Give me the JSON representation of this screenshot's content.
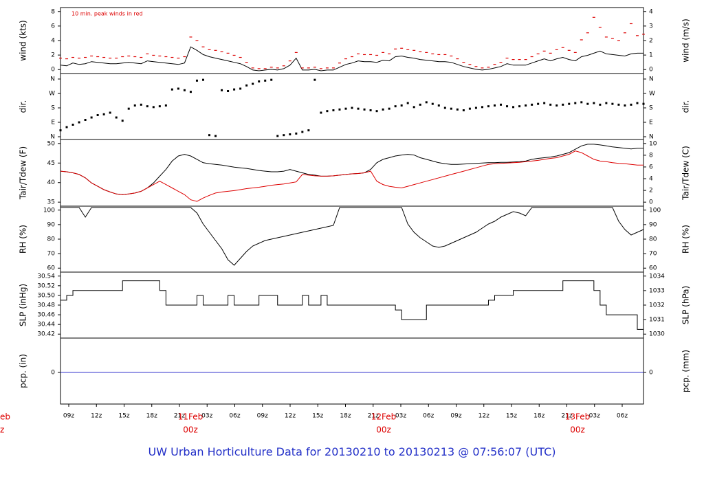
{
  "footer_title": "UW Urban Horticulture Data for 20130210  to  20130213 @ 07:56:07  (UTC)",
  "colors": {
    "black": "#000000",
    "red": "#dd0000",
    "blue": "#3333cc",
    "title": "#2330c8"
  },
  "chart_data": {
    "type": "line",
    "x_axis": {
      "tick_labels": [
        "09z",
        "12z",
        "15z",
        "18z",
        "21z",
        "03z",
        "06z",
        "09z",
        "12z",
        "15z",
        "18z",
        "21z",
        "03z",
        "06z",
        "09z",
        "12z",
        "15z",
        "18z",
        "21z",
        "03z",
        "06z"
      ],
      "day_labels": [
        {
          "day": "11Feb",
          "time": "00z"
        },
        {
          "day": "12Feb",
          "time": "00z"
        },
        {
          "day": "13Feb",
          "time": "00z"
        }
      ],
      "clipped_left_labels": {
        "day": "eb",
        "time": "z"
      }
    },
    "panels": [
      {
        "id": "wind",
        "ylabel_left": "wind (kts)",
        "ylabel_right": "wind (m/s)",
        "annotation": "10 min. peak winds in red",
        "ylim_left": [
          0,
          9
        ],
        "ylim_right": [
          0,
          4.6
        ],
        "ticks_left": [
          "0",
          "2",
          "4",
          "6",
          "8"
        ],
        "ticks_right": [
          "0",
          "1",
          "2",
          "3",
          "4"
        ],
        "series": [
          {
            "name": "wind",
            "color": "black",
            "style": "line",
            "values": [
              1.0,
              0.9,
              1.3,
              1.1,
              1.2,
              1.5,
              1.4,
              1.3,
              1.2,
              1.2,
              1.3,
              1.4,
              1.3,
              1.2,
              1.6,
              1.5,
              1.4,
              1.3,
              1.2,
              1.1,
              1.3,
              3.6,
              3.1,
              2.5,
              2.2,
              2.0,
              1.8,
              1.6,
              1.4,
              1.2,
              0.8,
              0.3,
              0.2,
              0.3,
              0.4,
              0.3,
              0.5,
              1.0,
              2.0,
              0.3,
              0.3,
              0.4,
              0.2,
              0.3,
              0.3,
              0.7,
              1.1,
              1.3,
              1.6,
              1.5,
              1.5,
              1.4,
              1.7,
              1.6,
              2.2,
              2.3,
              2.1,
              2.0,
              1.8,
              1.7,
              1.6,
              1.5,
              1.5,
              1.4,
              1.1,
              0.8,
              0.6,
              0.4,
              0.3,
              0.4,
              0.6,
              0.8,
              1.2,
              1.0,
              1.0,
              1.0,
              1.3,
              1.6,
              1.9,
              1.6,
              1.9,
              2.1,
              1.8,
              1.6,
              2.2,
              2.4,
              2.7,
              3.0,
              2.6,
              2.5,
              2.4,
              2.3,
              2.6,
              2.7,
              2.7
            ]
          },
          {
            "name": "peak",
            "color": "red",
            "style": "dash",
            "values": [
              2.0,
              1.9,
              2.1,
              2.0,
              2.1,
              2.3,
              2.2,
              2.1,
              2.0,
              2.0,
              2.2,
              2.3,
              2.2,
              2.1,
              2.6,
              2.4,
              2.3,
              2.2,
              2.1,
              2.0,
              2.2,
              5.0,
              4.5,
              3.6,
              3.2,
              3.1,
              2.9,
              2.7,
              2.4,
              2.1,
              1.4,
              0.6,
              0.5,
              0.5,
              0.7,
              0.6,
              0.9,
              1.6,
              2.8,
              0.6,
              0.6,
              0.7,
              0.5,
              0.6,
              0.6,
              1.3,
              1.9,
              2.2,
              2.6,
              2.5,
              2.5,
              2.4,
              2.8,
              2.6,
              3.3,
              3.4,
              3.2,
              3.1,
              2.9,
              2.8,
              2.6,
              2.5,
              2.5,
              2.3,
              1.9,
              1.4,
              1.1,
              0.8,
              0.6,
              0.7,
              1.1,
              1.4,
              2.0,
              1.8,
              1.8,
              1.8,
              2.2,
              2.6,
              3.0,
              2.7,
              3.2,
              3.5,
              3.1,
              2.8,
              4.6,
              5.6,
              7.8,
              6.4,
              5.0,
              4.8,
              4.5,
              5.6,
              6.9,
              5.2,
              5.4
            ]
          }
        ]
      },
      {
        "id": "dir",
        "ylabel_left": "dir.",
        "ylabel_right": "dir.",
        "ylim": [
          0,
          360
        ],
        "ticks_left": [
          "N",
          "E",
          "S",
          "W",
          "N"
        ],
        "ticks_right": [
          "N",
          "E",
          "S",
          "W",
          "N"
        ],
        "series": [
          {
            "name": "direction",
            "color": "black",
            "style": "dots",
            "values": [
              40,
              60,
              75,
              90,
              105,
              120,
              135,
              140,
              150,
              120,
              100,
              175,
              195,
              200,
              190,
              185,
              190,
              195,
              295,
              300,
              290,
              280,
              350,
              355,
              10,
              5,
              290,
              285,
              295,
              300,
              320,
              330,
              345,
              350,
              355,
              5,
              10,
              15,
              20,
              30,
              40,
              355,
              150,
              160,
              165,
              170,
              175,
              180,
              175,
              170,
              165,
              160,
              170,
              175,
              190,
              195,
              210,
              185,
              200,
              215,
              205,
              195,
              180,
              175,
              170,
              165,
              175,
              180,
              185,
              190,
              195,
              200,
              190,
              185,
              190,
              195,
              200,
              205,
              210,
              200,
              195,
              200,
              205,
              210,
              215,
              205,
              210,
              200,
              210,
              205,
              200,
              195,
              200,
              210,
              205
            ]
          }
        ]
      },
      {
        "id": "temp",
        "ylabel_left": "Tair/Tdew (F)",
        "ylabel_right": "Tair/Tdew (C)",
        "ylim_left": [
          32,
          51
        ],
        "ticks_left": [
          "35",
          "40",
          "45",
          "50"
        ],
        "ticks_right": [
          "0",
          "2",
          "4",
          "6",
          "8",
          "10"
        ],
        "series": [
          {
            "name": "Tair",
            "color": "black",
            "style": "line",
            "values": [
              42.0,
              41.8,
              41.5,
              41.0,
              40.0,
              38.5,
              37.5,
              36.5,
              35.8,
              35.2,
              35.0,
              35.2,
              35.5,
              36.0,
              37.0,
              38.5,
              40.5,
              42.5,
              45.0,
              46.5,
              47.0,
              46.5,
              45.5,
              44.5,
              44.2,
              44.0,
              43.8,
              43.5,
              43.2,
              43.0,
              42.8,
              42.5,
              42.2,
              42.0,
              41.8,
              41.8,
              42.0,
              42.5,
              42.0,
              41.5,
              41.0,
              40.8,
              40.5,
              40.5,
              40.6,
              40.8,
              41.0,
              41.2,
              41.3,
              41.5,
              42.5,
              44.5,
              45.5,
              46.0,
              46.5,
              46.8,
              47.0,
              46.8,
              46.0,
              45.5,
              45.0,
              44.5,
              44.2,
              44.0,
              44.0,
              44.1,
              44.2,
              44.3,
              44.4,
              44.5,
              44.5,
              44.6,
              44.6,
              44.7,
              44.8,
              45.0,
              45.5,
              45.8,
              46.0,
              46.2,
              46.5,
              47.0,
              47.5,
              48.5,
              49.5,
              50.0,
              50.0,
              49.8,
              49.5,
              49.2,
              49.0,
              48.8,
              48.6,
              48.8,
              48.8
            ]
          },
          {
            "name": "Tdew",
            "color": "red",
            "style": "line",
            "values": [
              42.0,
              41.8,
              41.5,
              41.0,
              40.0,
              38.5,
              37.5,
              36.5,
              35.8,
              35.2,
              35.0,
              35.2,
              35.5,
              36.0,
              37.0,
              38.0,
              39.0,
              38.0,
              37.0,
              36.0,
              35.0,
              33.5,
              33.0,
              34.0,
              34.8,
              35.5,
              35.8,
              36.0,
              36.2,
              36.5,
              36.8,
              37.0,
              37.2,
              37.5,
              37.8,
              38.0,
              38.2,
              38.5,
              38.8,
              41.0,
              40.8,
              40.6,
              40.5,
              40.5,
              40.6,
              40.8,
              41.0,
              41.2,
              41.3,
              41.5,
              42.0,
              39.0,
              38.0,
              37.5,
              37.2,
              37.0,
              37.5,
              38.0,
              38.5,
              39.0,
              39.5,
              40.0,
              40.5,
              41.0,
              41.5,
              42.0,
              42.5,
              43.0,
              43.5,
              44.0,
              44.2,
              44.3,
              44.4,
              44.5,
              44.6,
              44.8,
              45.0,
              45.2,
              45.5,
              45.8,
              46.0,
              46.5,
              47.0,
              48.0,
              47.5,
              46.5,
              45.5,
              45.0,
              44.8,
              44.5,
              44.3,
              44.2,
              44.0,
              43.8,
              43.8
            ]
          }
        ]
      },
      {
        "id": "rh",
        "ylabel_left": "RH (%)",
        "ylabel_right": "RH (%)",
        "ylim": [
          54,
          100
        ],
        "ticks_left": [
          "60",
          "70",
          "80",
          "90",
          "100"
        ],
        "ticks_right": [
          "60",
          "70",
          "80",
          "90",
          "100"
        ],
        "series": [
          {
            "name": "RH",
            "color": "black",
            "style": "line",
            "values": [
              100,
              100,
              100,
              100,
              93,
              100,
              100,
              100,
              100,
              100,
              100,
              100,
              100,
              100,
              100,
              100,
              100,
              100,
              100,
              100,
              100,
              100,
              96,
              88,
              82,
              76,
              70,
              62,
              58,
              63,
              68,
              72,
              74,
              76,
              77,
              78,
              79,
              80,
              81,
              82,
              83,
              84,
              85,
              86,
              87,
              100,
              100,
              100,
              100,
              100,
              100,
              100,
              100,
              100,
              100,
              100,
              88,
              82,
              78,
              75,
              72,
              71,
              72,
              74,
              76,
              78,
              80,
              82,
              85,
              88,
              90,
              93,
              95,
              97,
              96,
              94,
              100,
              100,
              100,
              100,
              100,
              100,
              100,
              100,
              100,
              100,
              100,
              100,
              100,
              100,
              90,
              84,
              80,
              82,
              84
            ]
          }
        ]
      },
      {
        "id": "slp",
        "ylabel_left": "SLP (inHg)",
        "ylabel_right": "SLP (hPa)",
        "ylim_left": [
          30.415,
          30.545
        ],
        "ticks_left": [
          "30.42",
          "30.44",
          "30.46",
          "30.48",
          "30.50",
          "30.52",
          "30.54"
        ],
        "ticks_right": [
          "1030",
          "1031",
          "1032",
          "1033",
          "1034"
        ],
        "series": [
          {
            "name": "SLP",
            "color": "black",
            "style": "step",
            "values": [
              30.49,
              30.5,
              30.51,
              30.51,
              30.51,
              30.51,
              30.51,
              30.51,
              30.51,
              30.51,
              30.53,
              30.53,
              30.53,
              30.53,
              30.53,
              30.53,
              30.51,
              30.48,
              30.48,
              30.48,
              30.48,
              30.48,
              30.5,
              30.48,
              30.48,
              30.48,
              30.48,
              30.5,
              30.48,
              30.48,
              30.48,
              30.48,
              30.5,
              30.5,
              30.5,
              30.48,
              30.48,
              30.48,
              30.48,
              30.5,
              30.48,
              30.48,
              30.5,
              30.48,
              30.48,
              30.48,
              30.48,
              30.48,
              30.48,
              30.48,
              30.48,
              30.48,
              30.48,
              30.48,
              30.47,
              30.45,
              30.45,
              30.45,
              30.45,
              30.48,
              30.48,
              30.48,
              30.48,
              30.48,
              30.48,
              30.48,
              30.48,
              30.48,
              30.48,
              30.49,
              30.5,
              30.5,
              30.5,
              30.51,
              30.51,
              30.51,
              30.51,
              30.51,
              30.51,
              30.51,
              30.51,
              30.53,
              30.53,
              30.53,
              30.53,
              30.53,
              30.51,
              30.48,
              30.46,
              30.46,
              30.46,
              30.46,
              30.46,
              30.43,
              30.44
            ]
          }
        ]
      },
      {
        "id": "pcp",
        "ylabel_left": "pcp. (in)",
        "ylabel_right": "pcp. (mm)",
        "ticks_left": [
          "0"
        ],
        "ticks_right": [
          "0"
        ],
        "series": [
          {
            "name": "precip",
            "color": "blue",
            "style": "line",
            "values": [
              0,
              0
            ]
          }
        ]
      }
    ]
  }
}
